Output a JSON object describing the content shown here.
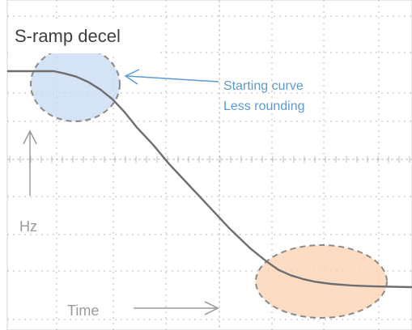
{
  "chart_data": {
    "type": "line",
    "title": "S-ramp decel",
    "xlabel": "Time",
    "ylabel": "Hz",
    "grid": true,
    "series": [
      {
        "x": [
          0,
          0.115,
          0.14,
          0.17,
          0.2,
          0.23,
          0.26,
          0.29,
          0.32,
          0.36,
          0.4,
          0.45,
          0.5,
          0.55,
          0.6,
          0.64,
          0.67,
          0.7,
          0.73,
          0.76,
          0.8,
          0.85,
          0.9,
          0.95,
          1.0
        ],
        "values": [
          1.0,
          1.0,
          0.99,
          0.975,
          0.95,
          0.915,
          0.87,
          0.81,
          0.74,
          0.66,
          0.57,
          0.47,
          0.37,
          0.27,
          0.18,
          0.12,
          0.08,
          0.055,
          0.038,
          0.025,
          0.015,
          0.008,
          0.004,
          0.002,
          0.0
        ]
      }
    ],
    "annotations": [
      {
        "name": "starting-curve",
        "text_lines": [
          "Starting curve",
          "Less rounding"
        ],
        "color": "#5b9bd5",
        "fill": "#c5d9f1"
      },
      {
        "name": "ending-curve",
        "text_lines": [],
        "color": "#f4b183",
        "fill": "#fbd5b5"
      }
    ]
  },
  "colors": {
    "trace": "#6e6e6e",
    "grid": "#b8b8b8",
    "label": "#9a9a9a",
    "title": "#404040",
    "accent": "#5b9bd5"
  }
}
